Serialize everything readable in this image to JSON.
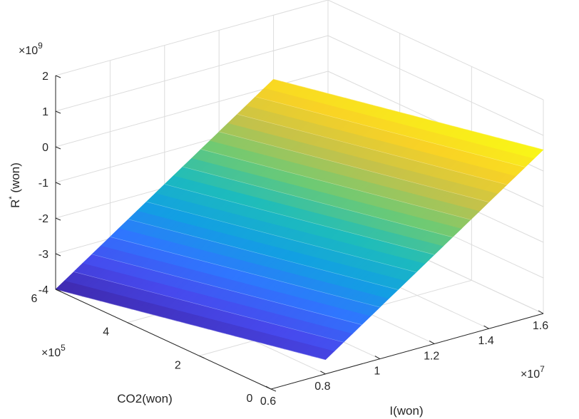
{
  "chart_data": {
    "type": "surface",
    "title": "",
    "xlabel": "I(won)",
    "ylabel": "CO2(won)",
    "zlabel_base": "R",
    "zlabel_sup": "*",
    "zlabel_rest": " (won)",
    "x_multiplier": {
      "prefix": "×10",
      "exp": "7"
    },
    "y_multiplier": {
      "prefix": "×10",
      "exp": "5"
    },
    "z_multiplier": {
      "prefix": "×10",
      "exp": "9"
    },
    "x_ticks": [
      "0.6",
      "0.8",
      "1",
      "1.2",
      "1.4",
      "1.6"
    ],
    "y_ticks": [
      "0",
      "2",
      "4",
      "6"
    ],
    "z_ticks": [
      "2",
      "1",
      "0",
      "-1",
      "-2",
      "-3",
      "-4"
    ],
    "x_range": [
      0.6,
      1.6
    ],
    "y_range": [
      0,
      6
    ],
    "z_range": [
      -4,
      2
    ],
    "surface_corners": [
      {
        "I": 0.6,
        "CO2": 6,
        "R": -4.0
      },
      {
        "I": 0.8,
        "CO2": 0,
        "R": -3.6
      },
      {
        "I": 1.6,
        "CO2": 0,
        "R": 0.6
      },
      {
        "I": 1.4,
        "CO2": 6,
        "R": 0.2
      }
    ],
    "colormap": [
      "#3e26a8",
      "#4749ed",
      "#2f76fe",
      "#12a0e2",
      "#1dbcbc",
      "#6dca74",
      "#c4c24a",
      "#f9d225",
      "#f9fb15"
    ],
    "grid": true
  }
}
